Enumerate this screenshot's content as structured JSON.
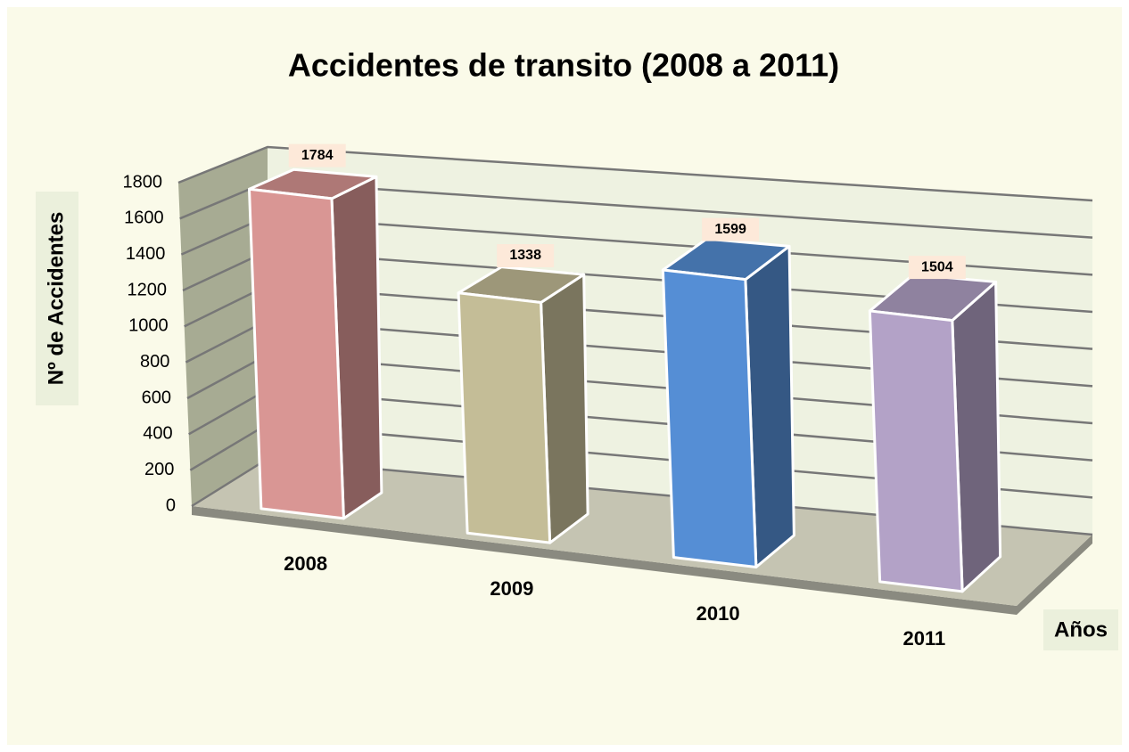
{
  "chart_data": {
    "type": "bar3d",
    "title": "Accidentes de transito (2008 a 2011)",
    "x_label": "Años",
    "y_label": "Nº de Accidentes",
    "categories": [
      "2008",
      "2009",
      "2010",
      "2011"
    ],
    "values": [
      1784,
      1338,
      1599,
      1504
    ],
    "colors": [
      "#d99694",
      "#c4bd97",
      "#558ed5",
      "#b3a2c7"
    ],
    "ylim": [
      0,
      1800
    ],
    "yticks": [
      0,
      200,
      400,
      600,
      800,
      1000,
      1200,
      1400,
      1600,
      1800
    ],
    "grid": true
  }
}
